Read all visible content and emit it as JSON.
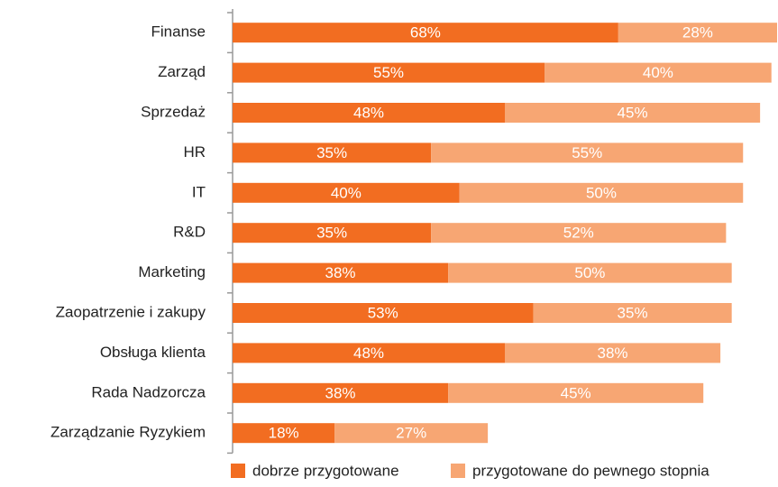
{
  "chart_data": {
    "type": "stacked-bar-horizontal",
    "categories": [
      "Finanse",
      "Zarząd",
      "Sprzedaż",
      "HR",
      "IT",
      "R&D",
      "Marketing",
      "Zaopatrzenie i zakupy",
      "Obsługa klienta",
      "Rada Nadzorcza",
      "Zarządzanie Ryzykiem"
    ],
    "series": [
      {
        "name": "dobrze przygotowane",
        "color": "#f26d21",
        "values": [
          68,
          55,
          48,
          35,
          40,
          35,
          38,
          53,
          48,
          38,
          18
        ],
        "value_labels": [
          "68%",
          "55%",
          "48%",
          "35%",
          "40%",
          "35%",
          "38%",
          "53%",
          "48%",
          "38%",
          "18%"
        ]
      },
      {
        "name": "przygotowane do pewnego stopnia",
        "color": "#f7a673",
        "values": [
          28,
          40,
          45,
          55,
          50,
          52,
          50,
          35,
          38,
          45,
          27
        ],
        "value_labels": [
          "28%",
          "40%",
          "45%",
          "55%",
          "50%",
          "52%",
          "50%",
          "35%",
          "38%",
          "45%",
          "27%"
        ]
      }
    ]
  }
}
